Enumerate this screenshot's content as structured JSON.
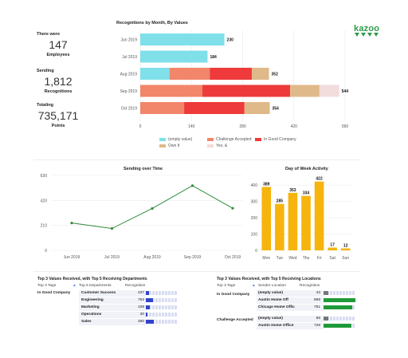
{
  "brand": {
    "logo_text": "kazoo",
    "color": "#2f9b4a"
  },
  "kpis": [
    {
      "label": "There were",
      "value": "147",
      "unit": "Employees"
    },
    {
      "label": "Sending",
      "value": "1,812",
      "unit": "Recognitions"
    },
    {
      "label": "Totaling",
      "value": "735,171",
      "unit": "Points"
    }
  ],
  "recognitions_chart": {
    "title": "Recognitions by Month, By Values",
    "type": "bar",
    "orientation": "horizontal",
    "stacked": true,
    "categories": [
      "Jun 2019",
      "Jul 2019",
      "Aug 2019",
      "Sep 2019",
      "Oct 2019"
    ],
    "totals": [
      "230",
      "184",
      "352",
      "544",
      "354"
    ],
    "xticks": [
      "0",
      "140",
      "280",
      "420",
      "560"
    ],
    "xlim": [
      0,
      560
    ],
    "series": [
      {
        "name": "(empty value)",
        "color": "#7fe0ea",
        "values": [
          230,
          184,
          80,
          0,
          0
        ]
      },
      {
        "name": "Challenge Accepted",
        "color": "#f2866a",
        "values": [
          0,
          0,
          110,
          170,
          120
        ]
      },
      {
        "name": "In Good Company",
        "color": "#ee3a3a",
        "values": [
          0,
          0,
          115,
          240,
          165
        ]
      },
      {
        "name": "Own It",
        "color": "#e0b98a",
        "values": [
          0,
          0,
          47,
          80,
          69
        ]
      },
      {
        "name": "Yes, &",
        "color": "#f3dcdc",
        "values": [
          0,
          0,
          0,
          54,
          0
        ]
      }
    ]
  },
  "sending_chart": {
    "title": "Sending over Time",
    "type": "line",
    "categories": [
      "Jun 2019",
      "Jul 2019",
      "Aug 2019",
      "Sep 2019",
      "Oct 2019"
    ],
    "values": [
      230,
      184,
      352,
      544,
      354
    ],
    "yticks": [
      "0",
      "210",
      "420",
      "630"
    ],
    "ylim": [
      0,
      630
    ],
    "color": "#2e8b3d"
  },
  "dow_chart": {
    "title": "Day of Week Activity",
    "type": "bar",
    "categories": [
      "Mon",
      "Tue",
      "Wed",
      "Thu",
      "Fri",
      "Sat",
      "Sun"
    ],
    "values": [
      389,
      285,
      353,
      334,
      422,
      17,
      12
    ],
    "labels": [
      "389",
      "285",
      "353",
      "334",
      "422",
      "17",
      "12"
    ],
    "yticks": [
      "0",
      "100",
      "200",
      "300",
      "400"
    ],
    "ylim": [
      0,
      450
    ],
    "color": "#f6b40d"
  },
  "table_departments": {
    "title": "Top 3 Values Received, with Top 5 Receiving Departments",
    "headers": [
      "Top 3 Tags",
      "Top 5 Departments",
      "Recognition"
    ],
    "tag": "In Good Company",
    "rows": [
      {
        "name": "Customer Success",
        "value": "237",
        "fraction": 0.1
      },
      {
        "name": "Engineering",
        "value": "752",
        "fraction": 0.22
      },
      {
        "name": "Marketing",
        "value": "109",
        "fraction": 0.12
      },
      {
        "name": "Operations",
        "value": "30",
        "fraction": 0.05
      },
      {
        "name": "Sales",
        "value": "280",
        "fraction": 0.25
      }
    ],
    "bar_color": "#3344cc"
  },
  "table_locations": {
    "title": "Top 3 Values Received, with Top 5 Receiving Locations",
    "headers": [
      "Top 3 Tags",
      "Sender Location",
      "Recognition"
    ],
    "groups": [
      {
        "tag": "In Good Company",
        "rows": [
          {
            "name": "(empty value)",
            "value": "43",
            "fraction": 0.15,
            "color": "#777777"
          },
          {
            "name": "Austin Home Off",
            "value": "869",
            "fraction": 1.0,
            "color": "#1f9a3a"
          },
          {
            "name": "Chicago Home Offic",
            "value": "751",
            "fraction": 0.9,
            "color": "#1f9a3a"
          }
        ]
      },
      {
        "tag": "Challenge Accepted",
        "rows": [
          {
            "name": "(empty value)",
            "value": "58",
            "fraction": 0.15,
            "color": "#777777"
          },
          {
            "name": "Austin Home Office",
            "value": "729",
            "fraction": 0.88,
            "color": "#1f9a3a"
          }
        ]
      }
    ]
  }
}
